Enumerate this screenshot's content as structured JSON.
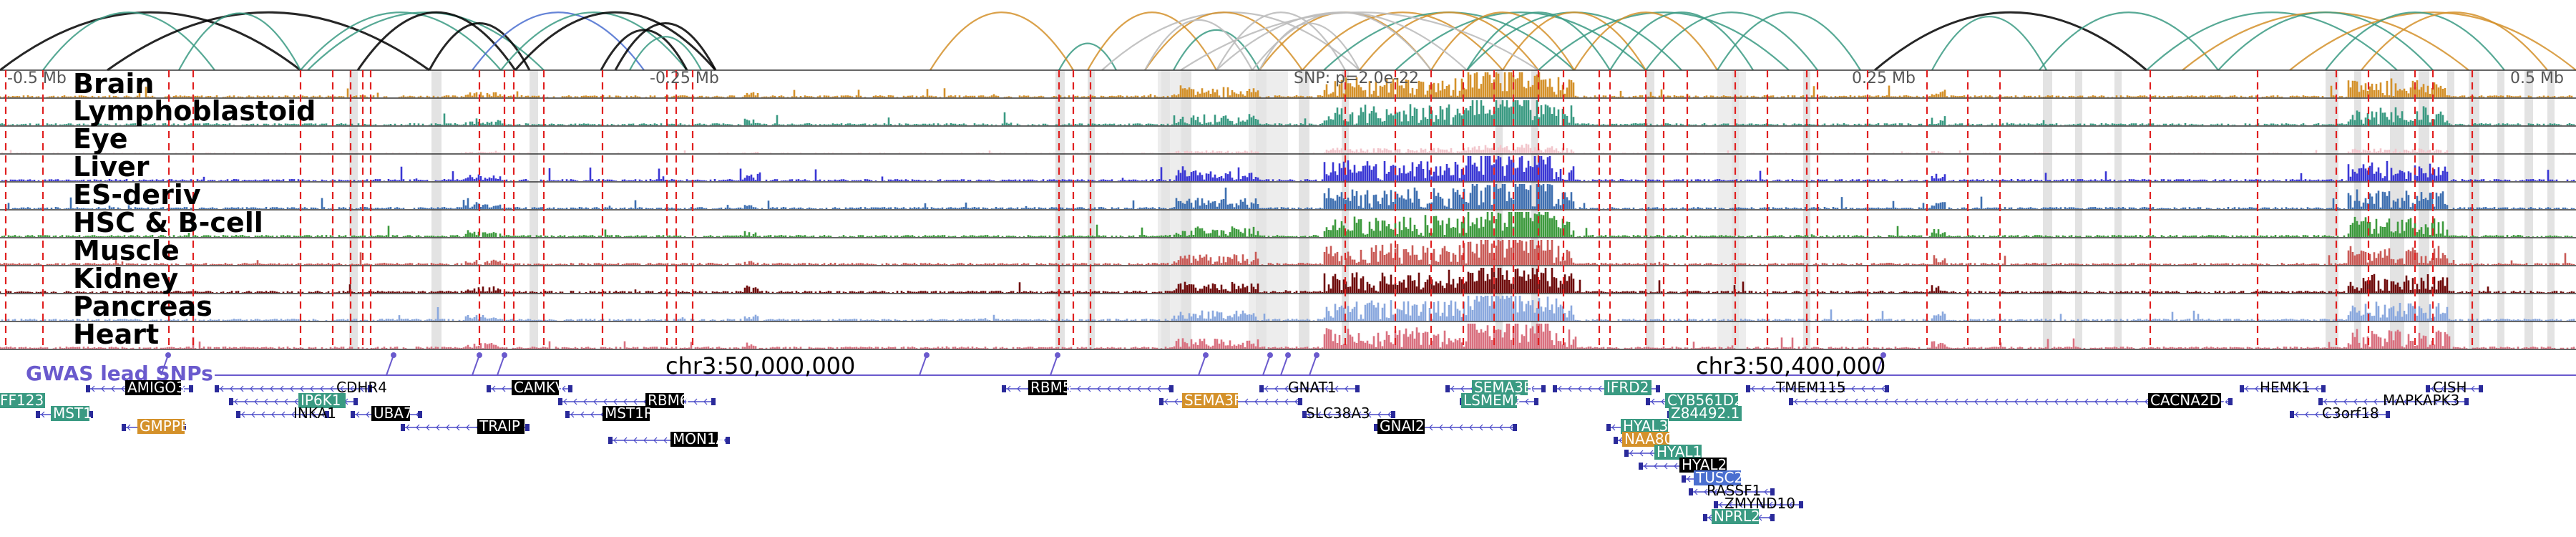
{
  "axis": {
    "start_label": "-0.5 Mb",
    "mid_label": "-0.25 Mb",
    "snp_label": "SNP: p=2.0e-22",
    "right_label": "0.25 Mb",
    "end_label": "0.5 Mb",
    "coord_left": "chr3:50,000,000",
    "coord_right": "chr3:50,400,000"
  },
  "gwas": {
    "title": "GWAS lead SNPs",
    "color": "#6a5acd"
  },
  "tracks": [
    {
      "name": "Brain",
      "color": "#d4912a"
    },
    {
      "name": "Lymphoblastoid",
      "color": "#3a9a82"
    },
    {
      "name": "Eye",
      "color": "#f2c6cc"
    },
    {
      "name": "Liver",
      "color": "#3a37d4"
    },
    {
      "name": "ES-deriv",
      "color": "#3e6fb0"
    },
    {
      "name": "HSC & B-cell",
      "color": "#3d9a3d"
    },
    {
      "name": "Muscle",
      "color": "#c95a56"
    },
    {
      "name": "Kidney",
      "color": "#6e0a0a"
    },
    {
      "name": "Pancreas",
      "color": "#8aa8de"
    },
    {
      "name": "Heart",
      "color": "#d9707f"
    }
  ],
  "genes": [
    {
      "name": "AMIGO3",
      "style": "box-black"
    },
    {
      "name": "CDHR4",
      "style": "plain"
    },
    {
      "name": "IP6K1",
      "style": "box-teal"
    },
    {
      "name": "INKA1",
      "style": "plain"
    },
    {
      "name": "UBA7",
      "style": "box-black"
    },
    {
      "name": "CAMKV",
      "style": "box-black"
    },
    {
      "name": "RBM6",
      "style": "box-black"
    },
    {
      "name": "MST1R",
      "style": "box-black"
    },
    {
      "name": "TRAIP",
      "style": "box-black"
    },
    {
      "name": "MON1A",
      "style": "box-black"
    },
    {
      "name": "MST1",
      "style": "box-teal"
    },
    {
      "name": "GMPPB",
      "style": "box-orange"
    },
    {
      "name": "RBM5",
      "style": "box-black"
    },
    {
      "name": "SEMA3F",
      "style": "box-orange"
    },
    {
      "name": "GNAT1",
      "style": "plain"
    },
    {
      "name": "SLC38A3",
      "style": "plain"
    },
    {
      "name": "GNAI2",
      "style": "box-black"
    },
    {
      "name": "SEMA3B",
      "style": "box-teal"
    },
    {
      "name": "LSMEM2",
      "style": "box-teal"
    },
    {
      "name": "IFRD2",
      "style": "box-teal"
    },
    {
      "name": "HYAL3",
      "style": "box-teal"
    },
    {
      "name": "NAA80",
      "style": "box-orange"
    },
    {
      "name": "HYAL1",
      "style": "box-teal"
    },
    {
      "name": "HYAL2",
      "style": "box-black"
    },
    {
      "name": "TUSC2",
      "style": "box-blue"
    },
    {
      "name": "RASSF1",
      "style": "plain"
    },
    {
      "name": "ZMYND10",
      "style": "plain"
    },
    {
      "name": "NPRL2",
      "style": "box-teal"
    },
    {
      "name": "CYB561D2",
      "style": "box-teal"
    },
    {
      "name": "Z84492.1",
      "style": "box-teal"
    },
    {
      "name": "TMEM115",
      "style": "plain"
    },
    {
      "name": "CACNA2D2",
      "style": "box-black"
    },
    {
      "name": "HEMK1",
      "style": "plain"
    },
    {
      "name": "MAPKAPK3",
      "style": "plain"
    },
    {
      "name": "CISH",
      "style": "plain"
    },
    {
      "name": "C3orf18",
      "style": "plain"
    }
  ],
  "edge_genes": [
    {
      "name": "FF123",
      "style": "box-teal"
    }
  ]
}
